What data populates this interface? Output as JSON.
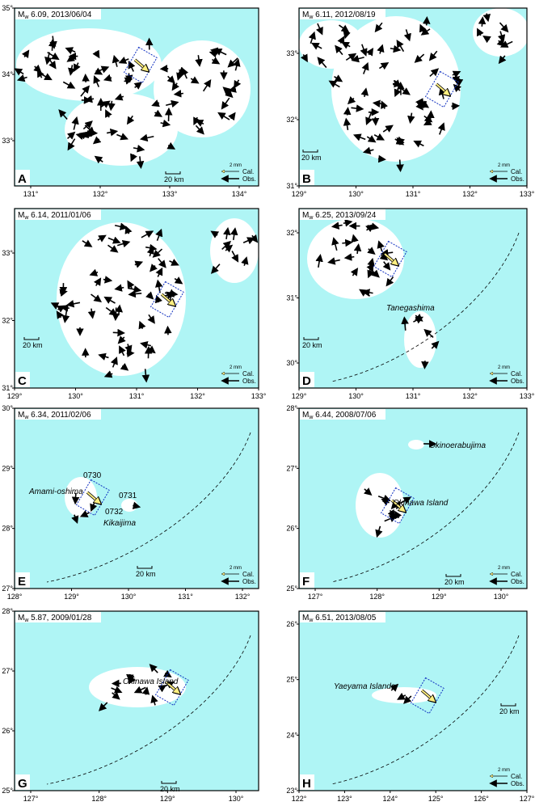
{
  "panels": [
    {
      "letter": "A",
      "title": {
        "m": "M",
        "sub": "w",
        "rest": " 6.09, 2013/06/04"
      },
      "xticks": [
        "131°",
        "132°",
        "133°",
        "134°"
      ],
      "yticks": [
        "33°",
        "34°",
        "35°"
      ],
      "places": [],
      "scale": "20 km",
      "legend": {
        "size": "2 mm",
        "cal": "Cal.",
        "obs": "Obs."
      }
    },
    {
      "letter": "B",
      "title": {
        "m": "M",
        "sub": "w",
        "rest": " 6.11, 2012/08/19"
      },
      "xticks": [
        "129°",
        "130°",
        "131°",
        "132°",
        "133°"
      ],
      "yticks": [
        "31°",
        "32°",
        "33°"
      ],
      "places": [],
      "scale": "20 km",
      "legend": {
        "size": "2 mm",
        "cal": "Cal.",
        "obs": "Obs."
      }
    },
    {
      "letter": "C",
      "title": {
        "m": "M",
        "sub": "w",
        "rest": " 6.14, 2011/01/06"
      },
      "xticks": [
        "129°",
        "130°",
        "131°",
        "132°",
        "133°"
      ],
      "yticks": [
        "31°",
        "32°",
        "33°"
      ],
      "places": [],
      "scale": "20 km",
      "legend": {
        "size": "2 mm",
        "cal": "Cal.",
        "obs": "Obs."
      }
    },
    {
      "letter": "D",
      "title": {
        "m": "M",
        "sub": "w",
        "rest": " 6.25, 2013/09/24"
      },
      "xticks": [
        "129°",
        "130°",
        "131°",
        "132°",
        "133°"
      ],
      "yticks": [
        "30°",
        "31°",
        "32°"
      ],
      "places": [
        "Tanegashima"
      ],
      "scale": "20 km",
      "legend": {
        "size": "2 mm",
        "cal": "Cal.",
        "obs": "Obs."
      }
    },
    {
      "letter": "E",
      "title": {
        "m": "M",
        "sub": "w",
        "rest": " 6.34, 2011/02/06"
      },
      "xticks": [
        "128°",
        "129°",
        "130°",
        "131°",
        "132°"
      ],
      "yticks": [
        "27°",
        "28°",
        "29°",
        "30°"
      ],
      "places": [
        "Amami-oshima",
        "0730",
        "0731",
        "0732",
        "Kikaijima"
      ],
      "scale": "20 km",
      "legend": {
        "size": "2 mm",
        "cal": "Cal.",
        "obs": "Obs."
      }
    },
    {
      "letter": "F",
      "title": {
        "m": "M",
        "sub": "w",
        "rest": " 6.44, 2008/07/06"
      },
      "xticks": [
        "127°",
        "128°",
        "129°",
        "130°"
      ],
      "yticks": [
        "25°",
        "26°",
        "27°",
        "28°"
      ],
      "places": [
        "Okinoerabujima",
        "Okinawa Island"
      ],
      "scale": "20 km",
      "legend": {
        "size": "2 mm",
        "cal": "Cal.",
        "obs": "Obs."
      }
    },
    {
      "letter": "G",
      "title": {
        "m": "M",
        "sub": "w",
        "rest": " 5.87, 2009/01/28"
      },
      "xticks": [
        "127°",
        "128°",
        "129°",
        "130°"
      ],
      "yticks": [
        "25°",
        "26°",
        "27°",
        "28°"
      ],
      "places": [
        "Okinawa Island"
      ],
      "scale": "20 km"
    },
    {
      "letter": "H",
      "title": {
        "m": "M",
        "sub": "w",
        "rest": " 6.51, 2013/08/05"
      },
      "xticks": [
        "122°",
        "123°",
        "124°",
        "125°",
        "126°",
        "127°"
      ],
      "yticks": [
        "23°",
        "24°",
        "25°",
        "26°"
      ],
      "places": [
        "Yaeyama Islands"
      ],
      "scale": "20 km",
      "legend": {
        "size": "2 mm",
        "cal": "Cal.",
        "obs": "Obs."
      }
    }
  ]
}
